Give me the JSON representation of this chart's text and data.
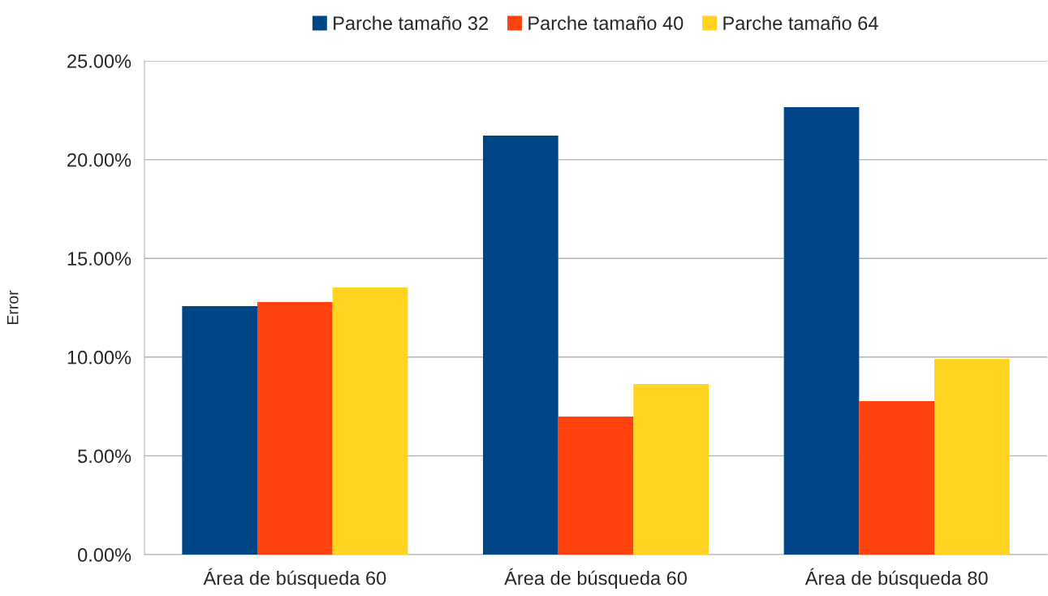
{
  "chart_data": {
    "type": "bar",
    "ylabel": "Error",
    "categories": [
      "Área de búsqueda 60",
      "Área de búsqueda 60",
      "Área de búsqueda 80"
    ],
    "series": [
      {
        "name": "Parche tamaño 32",
        "color": "#004586",
        "values": [
          12.58,
          21.22,
          22.66
        ]
      },
      {
        "name": "Parche tamaño 40",
        "color": "#ff420e",
        "values": [
          12.79,
          6.99,
          7.77
        ]
      },
      {
        "name": "Parche tamaño 64",
        "color": "#ffd320",
        "values": [
          13.53,
          8.63,
          9.91
        ]
      }
    ],
    "ylim": [
      0,
      25
    ],
    "yticks": [
      {
        "value": 0,
        "label": "0.00%"
      },
      {
        "value": 5,
        "label": "5.00%"
      },
      {
        "value": 10,
        "label": "10.00%"
      },
      {
        "value": 15,
        "label": "15.00%"
      },
      {
        "value": 20,
        "label": "20.00%"
      },
      {
        "value": 25,
        "label": "25.00%"
      }
    ],
    "grid": "y",
    "legend": "top"
  }
}
